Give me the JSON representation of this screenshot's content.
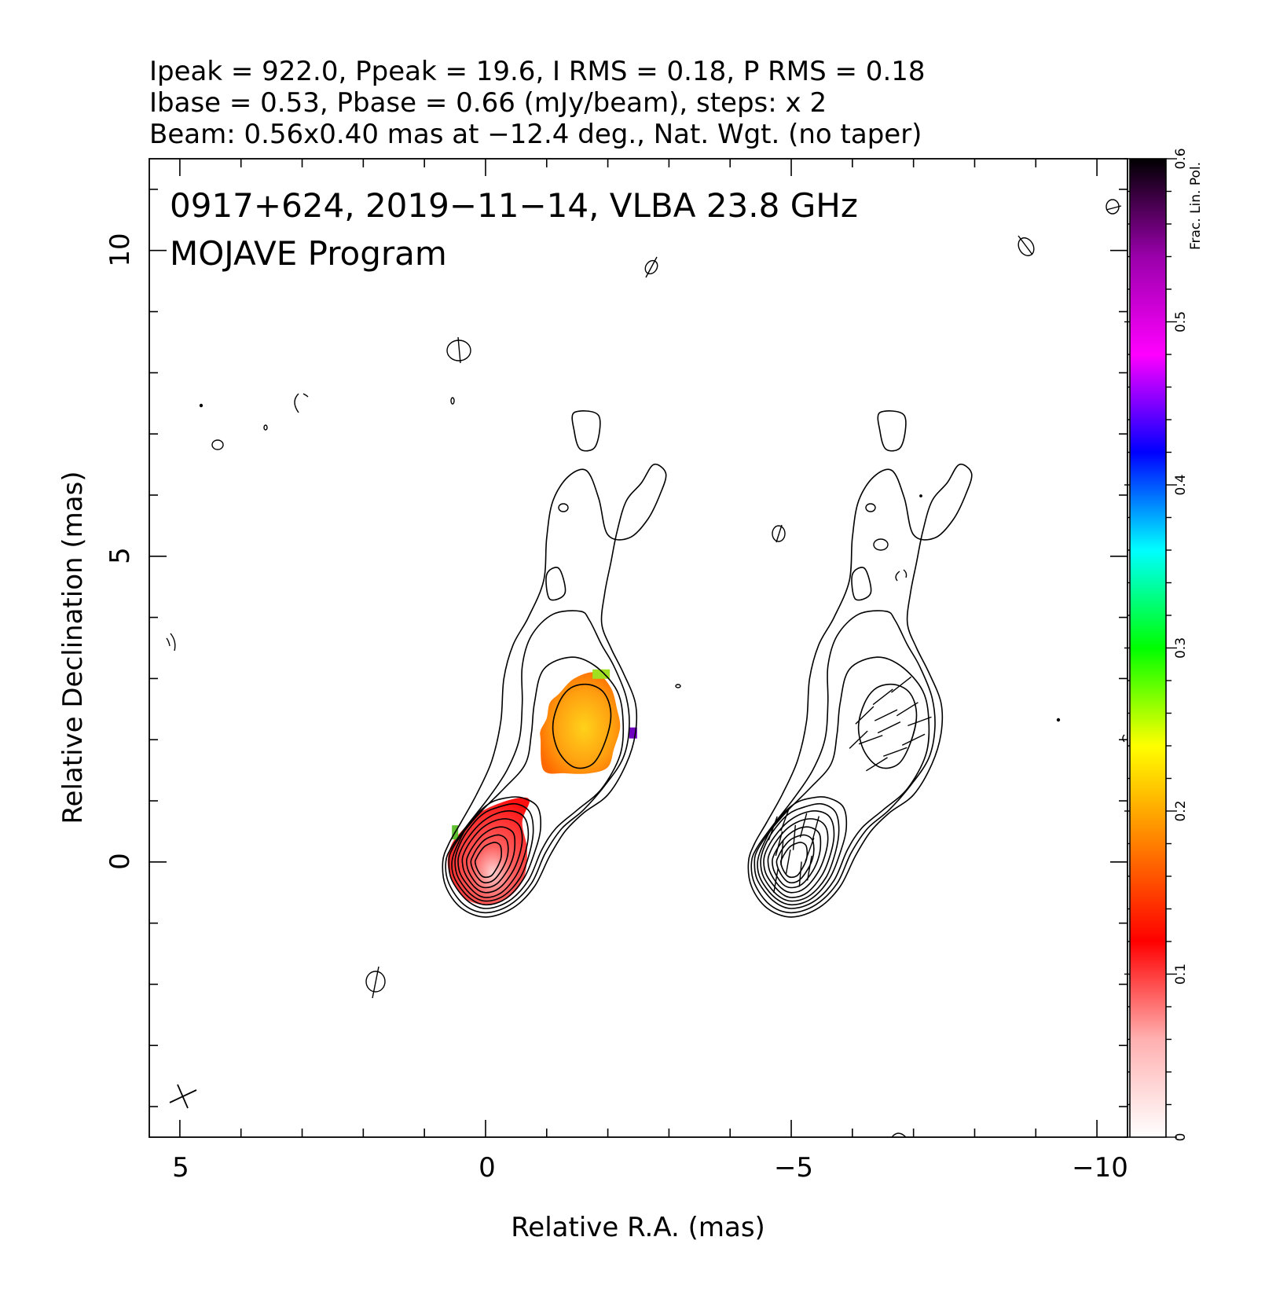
{
  "header": {
    "line1": "Ipeak = 922.0, Ppeak = 19.6, I RMS = 0.18, P RMS = 0.18",
    "line2": "Ibase = 0.53, Pbase = 0.66 (mJy/beam), steps: x 2",
    "line3": "Beam: 0.56x0.40 mas at −12.4 deg., Nat. Wgt. (no taper)"
  },
  "plot_title": {
    "line1": "0917+624, 2019−11−14, VLBA 23.8 GHz",
    "line2": "MOJAVE Program"
  },
  "colorbar": {
    "label": "Frac. Lin. Pol.",
    "ticks": [
      "0",
      "0.1",
      "0.2",
      "0.3",
      "0.4",
      "0.5",
      "0.6"
    ],
    "tick_values": [
      0,
      0.1,
      0.2,
      0.3,
      0.4,
      0.5,
      0.6
    ],
    "range": [
      0,
      0.6
    ],
    "colors": [
      "#ffffff",
      "#ffb0b0",
      "#ff0000",
      "#ff7f00",
      "#ffff00",
      "#00ff00",
      "#00ffff",
      "#0000ff",
      "#ff00ff",
      "#9900aa",
      "#000000"
    ]
  },
  "chart_data": {
    "type": "radio-map",
    "title": "0917+624, 2019−11−14, VLBA 23.8 GHz",
    "subtitle": "MOJAVE Program",
    "xlabel": "Relative R.A. (mas)",
    "ylabel": "Relative Declination (mas)",
    "xlim": [
      5.5,
      -10.5
    ],
    "ylim": [
      -4.5,
      11.5
    ],
    "x_ticks": [
      5,
      0,
      -5,
      -10
    ],
    "x_tick_labels": [
      "5",
      "0",
      "−5",
      "−10"
    ],
    "y_ticks": [
      0,
      5,
      10
    ],
    "y_tick_labels": [
      "0",
      "5",
      "10"
    ],
    "panels": [
      {
        "name": "total intensity with fractional polarization",
        "x_offset": 0
      },
      {
        "name": "total intensity with EVPA sticks",
        "x_offset": -5
      }
    ],
    "contours": {
      "base": 0.53,
      "steps": 2,
      "peak": 922.0,
      "core": [
        0,
        0
      ],
      "levels": [
        {
          "n": 1,
          "pts": [
            [
              0.7,
              0.0
            ],
            [
              0.65,
              -0.4
            ],
            [
              0.4,
              -0.75
            ],
            [
              0.0,
              -0.9
            ],
            [
              -0.45,
              -0.75
            ],
            [
              -0.8,
              -0.4
            ],
            [
              -1.05,
              0.1
            ],
            [
              -1.3,
              0.5
            ],
            [
              -1.6,
              0.8
            ],
            [
              -2.0,
              1.1
            ],
            [
              -2.3,
              1.6
            ],
            [
              -2.45,
              2.1
            ],
            [
              -2.45,
              2.6
            ],
            [
              -2.25,
              3.1
            ],
            [
              -2.05,
              3.5
            ],
            [
              -1.9,
              3.9
            ],
            [
              -1.95,
              4.4
            ],
            [
              -2.05,
              4.9
            ],
            [
              -2.15,
              5.4
            ],
            [
              -2.3,
              5.9
            ],
            [
              -2.55,
              6.2
            ],
            [
              -2.75,
              6.5
            ],
            [
              -2.95,
              6.35
            ],
            [
              -2.85,
              6.0
            ],
            [
              -2.65,
              5.6
            ],
            [
              -2.35,
              5.3
            ],
            [
              -2.0,
              5.35
            ],
            [
              -1.85,
              5.95
            ],
            [
              -1.65,
              6.4
            ],
            [
              -1.35,
              6.3
            ],
            [
              -1.1,
              5.9
            ],
            [
              -1.0,
              5.3
            ],
            [
              -0.95,
              4.6
            ],
            [
              -0.7,
              4.0
            ],
            [
              -0.45,
              3.55
            ],
            [
              -0.3,
              3.0
            ],
            [
              -0.25,
              2.3
            ],
            [
              -0.1,
              1.65
            ],
            [
              0.15,
              1.1
            ],
            [
              0.4,
              0.65
            ],
            [
              0.6,
              0.3
            ]
          ]
        },
        {
          "n": 2,
          "pts": [
            [
              0.65,
              0.0
            ],
            [
              0.6,
              -0.35
            ],
            [
              0.35,
              -0.7
            ],
            [
              0.0,
              -0.83
            ],
            [
              -0.4,
              -0.7
            ],
            [
              -0.75,
              -0.35
            ],
            [
              -0.98,
              0.15
            ],
            [
              -1.25,
              0.55
            ],
            [
              -1.6,
              0.85
            ],
            [
              -1.95,
              1.25
            ],
            [
              -2.25,
              1.7
            ],
            [
              -2.35,
              2.2
            ],
            [
              -2.3,
              2.7
            ],
            [
              -2.1,
              3.2
            ],
            [
              -1.9,
              3.55
            ],
            [
              -1.7,
              3.95
            ],
            [
              -1.55,
              4.1
            ],
            [
              -1.1,
              4.05
            ],
            [
              -0.75,
              3.7
            ],
            [
              -0.6,
              3.2
            ],
            [
              -0.6,
              2.6
            ],
            [
              -0.55,
              2.0
            ],
            [
              -0.35,
              1.5
            ],
            [
              -0.05,
              1.05
            ],
            [
              0.3,
              0.6
            ],
            [
              0.55,
              0.25
            ]
          ]
        },
        {
          "n": 3,
          "pts": [
            [
              0.6,
              0.0
            ],
            [
              0.55,
              -0.3
            ],
            [
              0.3,
              -0.63
            ],
            [
              0.0,
              -0.76
            ],
            [
              -0.38,
              -0.64
            ],
            [
              -0.7,
              -0.3
            ],
            [
              -0.92,
              0.2
            ],
            [
              -1.15,
              0.55
            ],
            [
              -1.5,
              0.85
            ],
            [
              -1.9,
              1.2
            ],
            [
              -2.2,
              1.75
            ],
            [
              -2.25,
              2.3
            ],
            [
              -2.15,
              2.8
            ],
            [
              -1.8,
              3.2
            ],
            [
              -1.4,
              3.35
            ],
            [
              -0.95,
              3.15
            ],
            [
              -0.8,
              2.6
            ],
            [
              -0.75,
              2.1
            ],
            [
              -0.65,
              1.6
            ],
            [
              -0.3,
              1.2
            ],
            [
              0.05,
              0.85
            ],
            [
              0.35,
              0.5
            ],
            [
              0.55,
              0.2
            ]
          ]
        },
        {
          "n": 4,
          "pts": [
            [
              0.55,
              0.0
            ],
            [
              0.5,
              -0.28
            ],
            [
              0.27,
              -0.58
            ],
            [
              0.0,
              -0.7
            ],
            [
              -0.33,
              -0.6
            ],
            [
              -0.62,
              -0.28
            ],
            [
              -0.8,
              0.15
            ],
            [
              -0.9,
              0.55
            ],
            [
              -0.85,
              0.9
            ],
            [
              -0.6,
              1.05
            ],
            [
              -0.35,
              1.05
            ],
            [
              -0.05,
              0.95
            ],
            [
              0.25,
              0.65
            ],
            [
              0.45,
              0.3
            ]
          ]
        },
        {
          "n": 5,
          "pts": [
            [
              0.5,
              0.0
            ],
            [
              0.45,
              -0.25
            ],
            [
              0.24,
              -0.53
            ],
            [
              0.0,
              -0.64
            ],
            [
              -0.3,
              -0.55
            ],
            [
              -0.57,
              -0.25
            ],
            [
              -0.72,
              0.15
            ],
            [
              -0.78,
              0.52
            ],
            [
              -0.72,
              0.82
            ],
            [
              -0.5,
              0.95
            ],
            [
              -0.22,
              0.9
            ],
            [
              0.05,
              0.78
            ],
            [
              0.3,
              0.5
            ],
            [
              0.45,
              0.22
            ]
          ]
        },
        {
          "n": 6,
          "pts": [
            [
              0.45,
              0.0
            ],
            [
              0.4,
              -0.22
            ],
            [
              0.2,
              -0.48
            ],
            [
              0.0,
              -0.58
            ],
            [
              -0.26,
              -0.5
            ],
            [
              -0.5,
              -0.22
            ],
            [
              -0.64,
              0.12
            ],
            [
              -0.7,
              0.45
            ],
            [
              -0.64,
              0.72
            ],
            [
              -0.45,
              0.83
            ],
            [
              -0.2,
              0.8
            ],
            [
              0.05,
              0.66
            ],
            [
              0.27,
              0.42
            ],
            [
              0.41,
              0.18
            ]
          ]
        },
        {
          "n": 7,
          "pts": [
            [
              0.38,
              0.0
            ],
            [
              0.33,
              -0.2
            ],
            [
              0.17,
              -0.42
            ],
            [
              0.0,
              -0.5
            ],
            [
              -0.22,
              -0.43
            ],
            [
              -0.43,
              -0.18
            ],
            [
              -0.55,
              0.1
            ],
            [
              -0.6,
              0.38
            ],
            [
              -0.55,
              0.6
            ],
            [
              -0.38,
              0.7
            ],
            [
              -0.17,
              0.68
            ],
            [
              0.05,
              0.56
            ],
            [
              0.23,
              0.36
            ],
            [
              0.35,
              0.15
            ]
          ]
        },
        {
          "n": 8,
          "pts": [
            [
              0.31,
              0.0
            ],
            [
              0.27,
              -0.17
            ],
            [
              0.14,
              -0.36
            ],
            [
              0.0,
              -0.42
            ],
            [
              -0.18,
              -0.36
            ],
            [
              -0.35,
              -0.15
            ],
            [
              -0.45,
              0.08
            ],
            [
              -0.48,
              0.3
            ],
            [
              -0.45,
              0.48
            ],
            [
              -0.3,
              0.57
            ],
            [
              -0.13,
              0.55
            ],
            [
              0.04,
              0.45
            ],
            [
              0.18,
              0.29
            ],
            [
              0.28,
              0.12
            ]
          ]
        },
        {
          "n": 9,
          "pts": [
            [
              0.24,
              0.0
            ],
            [
              0.2,
              -0.14
            ],
            [
              0.1,
              -0.29
            ],
            [
              0.0,
              -0.34
            ],
            [
              -0.14,
              -0.29
            ],
            [
              -0.27,
              -0.12
            ],
            [
              -0.35,
              0.06
            ],
            [
              -0.37,
              0.23
            ],
            [
              -0.34,
              0.37
            ],
            [
              -0.23,
              0.44
            ],
            [
              -0.1,
              0.42
            ],
            [
              0.03,
              0.35
            ],
            [
              0.14,
              0.22
            ],
            [
              0.21,
              0.09
            ]
          ]
        },
        {
          "n": 10,
          "pts": [
            [
              0.17,
              0.0
            ],
            [
              0.14,
              -0.11
            ],
            [
              0.07,
              -0.22
            ],
            [
              0.0,
              -0.25
            ],
            [
              -0.1,
              -0.22
            ],
            [
              -0.19,
              -0.09
            ],
            [
              -0.25,
              0.05
            ],
            [
              -0.26,
              0.16
            ],
            [
              -0.24,
              0.27
            ],
            [
              -0.16,
              0.32
            ],
            [
              -0.07,
              0.3
            ],
            [
              0.02,
              0.25
            ],
            [
              0.1,
              0.15
            ],
            [
              0.15,
              0.06
            ]
          ]
        },
        {
          "n": 11,
          "pts": [
            [
              -1.1,
              2.2
            ],
            [
              -1.2,
              1.8
            ],
            [
              -1.45,
              1.55
            ],
            [
              -1.75,
              1.6
            ],
            [
              -1.95,
              1.95
            ],
            [
              -2.05,
              2.4
            ],
            [
              -1.95,
              2.75
            ],
            [
              -1.7,
              2.9
            ],
            [
              -1.4,
              2.85
            ],
            [
              -1.2,
              2.6
            ]
          ]
        }
      ],
      "islands": [
        {
          "pts": [
            [
              -1.45,
              7.35
            ],
            [
              -1.85,
              7.3
            ],
            [
              -1.8,
              6.8
            ],
            [
              -1.55,
              6.75
            ],
            [
              -1.45,
              7.05
            ]
          ]
        },
        {
          "pts": [
            [
              -1.05,
              4.3
            ],
            [
              -1.3,
              4.4
            ],
            [
              -1.2,
              4.8
            ],
            [
              -1.0,
              4.7
            ]
          ]
        }
      ]
    },
    "frac_pol_patches": [
      {
        "region": "core",
        "value_range": [
          0.01,
          0.1
        ],
        "color": "#ff2424",
        "pts": [
          [
            0.62,
            0.0
          ],
          [
            0.55,
            -0.3
          ],
          [
            0.33,
            -0.6
          ],
          [
            0.0,
            -0.7
          ],
          [
            -0.35,
            -0.6
          ],
          [
            -0.62,
            -0.28
          ],
          [
            -0.68,
            0.2
          ],
          [
            -0.6,
            0.65
          ],
          [
            -0.72,
            1.0
          ],
          [
            -0.55,
            1.05
          ],
          [
            -0.2,
            0.95
          ],
          [
            0.1,
            0.8
          ],
          [
            0.35,
            0.55
          ],
          [
            0.55,
            0.3
          ]
        ]
      },
      {
        "region": "jet knot",
        "value_range": [
          0.12,
          0.3
        ],
        "color": "#ffa500",
        "pts": [
          [
            -0.9,
            2.0
          ],
          [
            -0.95,
            1.5
          ],
          [
            -1.3,
            1.45
          ],
          [
            -1.7,
            1.45
          ],
          [
            -2.0,
            1.55
          ],
          [
            -2.1,
            1.85
          ],
          [
            -2.2,
            2.2
          ],
          [
            -2.15,
            2.5
          ],
          [
            -2.05,
            2.85
          ],
          [
            -1.8,
            3.1
          ],
          [
            -1.45,
            3.0
          ],
          [
            -1.2,
            2.75
          ],
          [
            -1.05,
            2.6
          ],
          [
            -1.0,
            2.35
          ],
          [
            -0.9,
            2.15
          ]
        ]
      }
    ],
    "evpa_sticks": "shown in right panel over core and jet knot",
    "colorbar_range": [
      0,
      0.6
    ]
  }
}
